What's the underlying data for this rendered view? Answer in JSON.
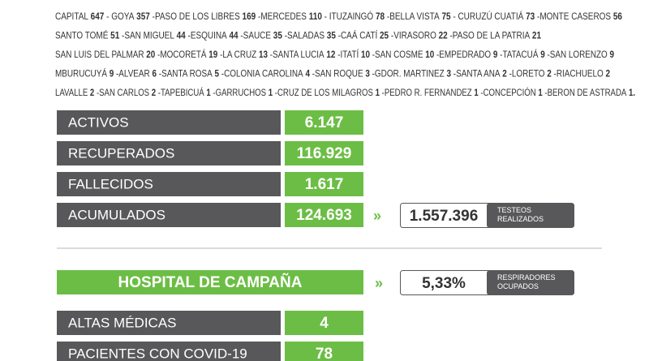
{
  "localities": [
    {
      "items": [
        {
          "name": "CAPITAL",
          "count": 647
        },
        {
          "name": "- GOYA",
          "count": 357
        },
        {
          "name": "-PASO DE LOS LIBRES",
          "count": 169
        },
        {
          "name": "-MERCEDES",
          "count": 110
        },
        {
          "name": "- ITUZAINGÓ",
          "count": 78
        },
        {
          "name": "-BELLA VISTA",
          "count": 75
        },
        {
          "name": "- CURUZÚ CUATIÁ",
          "count": 73
        },
        {
          "name": "-MONTE CASEROS",
          "count": 56
        }
      ]
    },
    {
      "items": [
        {
          "name": "SANTO TOMÉ",
          "count": 51
        },
        {
          "name": "-SAN MIGUEL",
          "count": 44
        },
        {
          "name": "-ESQUINA",
          "count": 44
        },
        {
          "name": "-SAUCE",
          "count": 35
        },
        {
          "name": "-SALADAS",
          "count": 35
        },
        {
          "name": "-CAÁ CATÍ",
          "count": 25
        },
        {
          "name": "-VIRASORO",
          "count": 22
        },
        {
          "name": "-PASO DE LA PATRIA",
          "count": 21
        }
      ]
    },
    {
      "items": [
        {
          "name": "SAN LUIS DEL PALMAR",
          "count": 20
        },
        {
          "name": "-MOCORETÁ",
          "count": 19
        },
        {
          "name": "-LA CRUZ",
          "count": 13
        },
        {
          "name": "-SANTA LUCIA",
          "count": 12
        },
        {
          "name": "-ITATÍ",
          "count": 10
        },
        {
          "name": "-SAN COSME",
          "count": 10
        },
        {
          "name": "-EMPEDRADO",
          "count": 9
        },
        {
          "name": "-TATACUÁ",
          "count": 9
        },
        {
          "name": "-SAN LORENZO",
          "count": 9
        }
      ]
    },
    {
      "items": [
        {
          "name": "MBURUCUYÁ",
          "count": 9
        },
        {
          "name": "-ALVEAR",
          "count": 6
        },
        {
          "name": "-SANTA ROSA",
          "count": 5
        },
        {
          "name": "-COLONIA CAROLINA",
          "count": 4
        },
        {
          "name": "-SAN ROQUE",
          "count": 3
        },
        {
          "name": "-GDOR. MARTINEZ",
          "count": 3
        },
        {
          "name": "-SANTA ANA",
          "count": 2
        },
        {
          "name": "-LORETO",
          "count": 2
        },
        {
          "name": "-RIACHUELO",
          "count": 2
        }
      ]
    },
    {
      "items": [
        {
          "name": "LAVALLE",
          "count": 2
        },
        {
          "name": "-SAN CARLOS",
          "count": 2
        },
        {
          "name": "-TAPEBICUÁ",
          "count": 1
        },
        {
          "name": "-GARRUCHOS",
          "count": 1
        },
        {
          "name": "-CRUZ DE LOS MILAGROS",
          "count": 1
        },
        {
          "name": "-PEDRO R. FERNANDEZ",
          "count": 1
        },
        {
          "name": "-CONCEPCIÓN",
          "count": 1
        },
        {
          "name": "-BERON DE ASTRADA",
          "count": 1
        }
      ],
      "end": "."
    }
  ],
  "stats": [
    {
      "label": "ACTIVOS",
      "value": "6.147"
    },
    {
      "label": "RECUPERADOS",
      "value": "116.929"
    },
    {
      "label": "FALLECIDOS",
      "value": "1.617"
    },
    {
      "label": "ACUMULADOS",
      "value": "124.693"
    }
  ],
  "tests": {
    "value": "1.557.396",
    "label": "TESTEOS REALIZADOS"
  },
  "hospital": {
    "title": "HOSPITAL DE CAMPAÑA",
    "respirators": {
      "value": "5,33%",
      "label": "RESPIRADORES OCUPADOS"
    },
    "rows": [
      {
        "label": "ALTAS MÉDICAS",
        "value": "4"
      },
      {
        "label": "PACIENTES CON COVID-19",
        "value": "78"
      }
    ]
  }
}
